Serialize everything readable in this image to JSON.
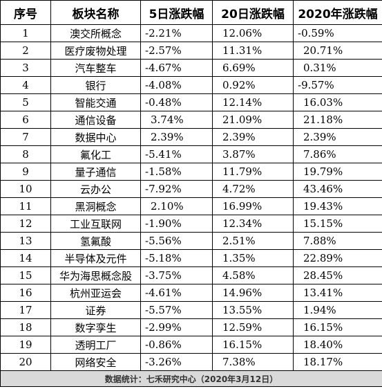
{
  "table": {
    "headers": [
      "序号",
      "板块名称",
      "5日涨跌幅",
      "20日涨跌幅",
      "2020年涨跌幅"
    ],
    "rows": [
      [
        "1",
        "澳交所概念",
        "-2.21%",
        "12.06%",
        "-0.59%"
      ],
      [
        "2",
        "医疗废物处理",
        "-2.57%",
        "11.31%",
        "20.71%"
      ],
      [
        "3",
        "汽车整车",
        "-4.67%",
        "6.69%",
        "0.31%"
      ],
      [
        "4",
        "银行",
        "-4.08%",
        "0.92%",
        "-9.57%"
      ],
      [
        "5",
        "智能交通",
        "-0.48%",
        "12.14%",
        "16.03%"
      ],
      [
        "6",
        "通信设备",
        "3.74%",
        "21.09%",
        "21.18%"
      ],
      [
        "7",
        "数据中心",
        "2.39%",
        "2.39%",
        "2.39%"
      ],
      [
        "8",
        "氟化工",
        "-5.41%",
        "3.87%",
        "7.86%"
      ],
      [
        "9",
        "量子通信",
        "-1.58%",
        "11.79%",
        "19.79%"
      ],
      [
        "10",
        "云办公",
        "-7.92%",
        "4.72%",
        "43.46%"
      ],
      [
        "11",
        "黑洞概念",
        "2.10%",
        "16.99%",
        "19.43%"
      ],
      [
        "12",
        "工业互联网",
        "-1.90%",
        "12.34%",
        "15.15%"
      ],
      [
        "13",
        "氢氟酸",
        "-5.56%",
        "2.51%",
        "7.88%"
      ],
      [
        "14",
        "半导体及元件",
        "-5.18%",
        "1.35%",
        "22.89%"
      ],
      [
        "15",
        "华为海思概念股",
        "-3.75%",
        "4.58%",
        "28.45%"
      ],
      [
        "16",
        "杭州亚运会",
        "-4.61%",
        "14.96%",
        "13.41%"
      ],
      [
        "17",
        "证券",
        "-5.57%",
        "13.55%",
        "1.94%"
      ],
      [
        "18",
        "数字孪生",
        "-2.99%",
        "12.59%",
        "16.15%"
      ],
      [
        "19",
        "透明工厂",
        "-0.86%",
        "16.15%",
        "18.40%"
      ],
      [
        "20",
        "网络安全",
        "-3.26%",
        "7.38%",
        "18.17%"
      ]
    ],
    "footer": "数据统计：七禾研究中心（2020年3月12日）"
  }
}
